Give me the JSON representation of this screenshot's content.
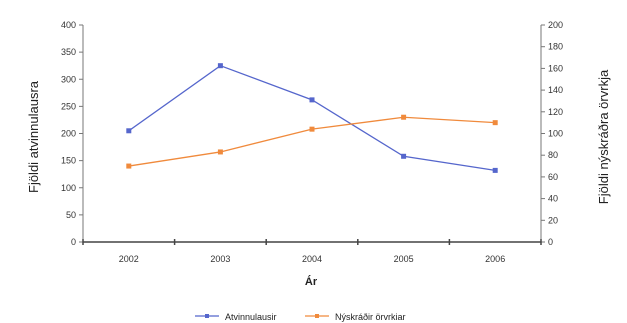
{
  "chart_data": {
    "type": "line",
    "xlabel": "Ár",
    "ylabel_left": "Fjöldi atvinnulausra",
    "ylabel_right": "Fjöldi nýskráðra örvrkja",
    "categories": [
      "2002",
      "2003",
      "2004",
      "2005",
      "2006"
    ],
    "ylim_left": [
      0,
      400
    ],
    "yticks_left": [
      0,
      50,
      100,
      150,
      200,
      250,
      300,
      350,
      400
    ],
    "ylim_right": [
      0,
      200
    ],
    "yticks_right": [
      0,
      20,
      40,
      60,
      80,
      100,
      120,
      140,
      160,
      180,
      200
    ],
    "grid": false,
    "legend_position": "bottom",
    "series": [
      {
        "name": "Atvinnulausir",
        "axis": "left",
        "color": "#5566cc",
        "values": [
          205,
          325,
          262,
          158,
          132
        ]
      },
      {
        "name": "Nýskráðir örvrkiar",
        "axis": "right",
        "color": "#f08a3c",
        "values": [
          70,
          83,
          104,
          115,
          110
        ]
      }
    ]
  }
}
